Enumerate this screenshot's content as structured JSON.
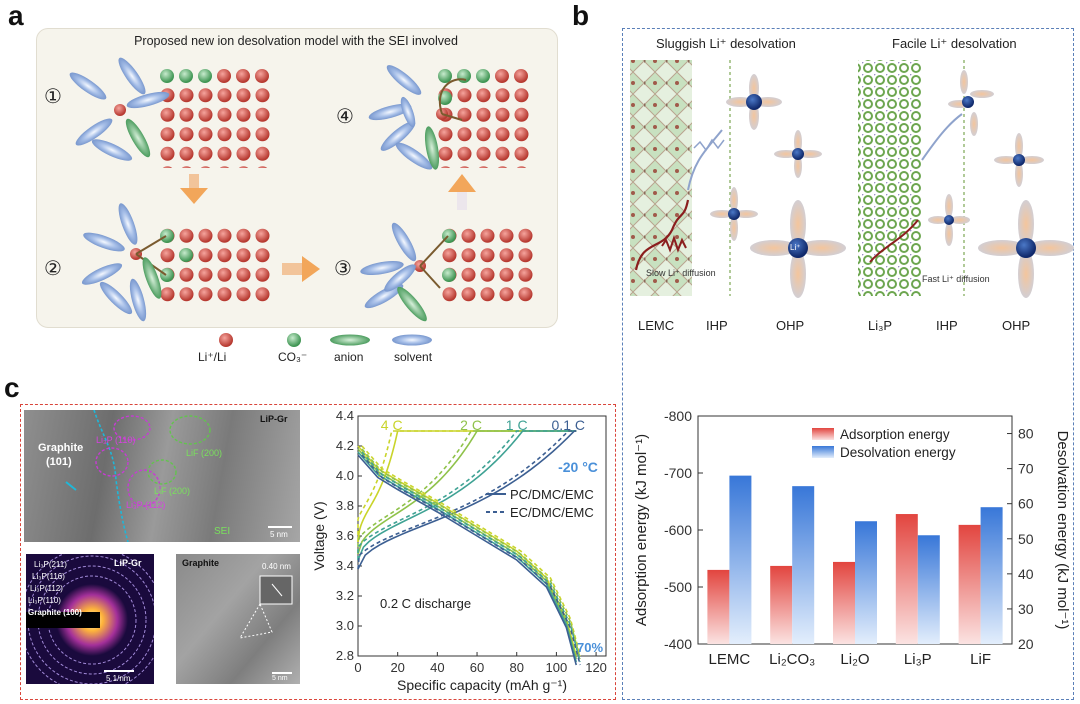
{
  "panels": {
    "a": "a",
    "b": "b",
    "c": "c"
  },
  "panel_a": {
    "title": "Proposed new ion desolvation model with the SEI involved",
    "steps": [
      "①",
      "②",
      "③",
      "④"
    ],
    "legend": {
      "li": "Li⁺/Li",
      "co3": "CO₃⁻",
      "anion": "anion",
      "solvent": "solvent"
    },
    "colors": {
      "li": "#c9463d",
      "co3": "#5aab6b",
      "solvent": "#7f9fd4",
      "anion": "#4f9e61",
      "arrow": "#f2a65a",
      "frame": "#f6f4ec"
    }
  },
  "panel_b": {
    "left_title": "Sluggish Li⁺ desolvation",
    "right_title": "Facile Li⁺ desolvation",
    "left_diffusion": "Slow Li⁺ diffusion",
    "right_diffusion": "Fast Li⁺ diffusion",
    "ion": "Li⁺",
    "bottom_labels": [
      "LEMC",
      "IHP",
      "OHP",
      "Li₃P",
      "IHP",
      "OHP"
    ]
  },
  "micrographs": {
    "top_tag": "LiP-Gr",
    "graphite": "Graphite",
    "graphite_plane": "(101)",
    "li3p_110": "Li₃P (110)",
    "li3p_112": "Li₃P (112)",
    "lif_200_a": "LiF (200)",
    "lif_200_b": "LiF (200)",
    "sei": "SEI",
    "scale_top": "5 nm",
    "saed_tag": "LiP-Gr",
    "saed_rings": [
      "Li₃P(211)",
      "Li₃P(116)",
      "Li₃P(112)",
      "Li₃P(110)",
      "Graphite (100)"
    ],
    "saed_scale": "5 1/nm",
    "graphite_tag": "Graphite",
    "lattice": "0.40 nm",
    "scale_graphite": "5 nm"
  },
  "chart_data": [
    {
      "type": "line",
      "title": "",
      "xlabel": "Specific capacity (mAh g⁻¹)",
      "ylabel": "Voltage (V)",
      "xlim": [
        0,
        125
      ],
      "ylim": [
        2.8,
        4.4
      ],
      "xticks": [
        0,
        20,
        40,
        60,
        80,
        100,
        120
      ],
      "yticks": [
        2.8,
        3.0,
        3.2,
        3.4,
        3.6,
        3.8,
        4.0,
        4.2,
        4.4
      ],
      "rate_labels": [
        "4 C",
        "2 C",
        "1 C",
        "0.1 C"
      ],
      "rate_colors": [
        "#c9d42a",
        "#8fc24a",
        "#3fa294",
        "#3c5f92"
      ],
      "temperature": "-20 °C",
      "discharge_label": "0.2 C discharge",
      "retention": "70%",
      "legend": [
        {
          "name": "PC/DMC/EMC",
          "style": "solid",
          "color": "#3c5f92"
        },
        {
          "name": "EC/DMC/EMC",
          "style": "dashed",
          "color": "#3c5f92"
        }
      ],
      "charge_series": [
        {
          "name": "4 C",
          "start": 3.56,
          "end_capacity": 20,
          "color": "#c9d42a"
        },
        {
          "name": "2 C",
          "start": 3.48,
          "end_capacity": 60,
          "color": "#8fc24a"
        },
        {
          "name": "1 C",
          "start": 3.44,
          "end_capacity": 83,
          "color": "#3fa294"
        },
        {
          "name": "0.1 C",
          "start": 3.38,
          "end_capacity": 109,
          "color": "#3c5f92"
        }
      ],
      "discharge_series": [
        {
          "name": "discharge",
          "points": [
            [
              0,
              4.2
            ],
            [
              10,
              4.05
            ],
            [
              20,
              3.97
            ],
            [
              40,
              3.82
            ],
            [
              60,
              3.66
            ],
            [
              80,
              3.5
            ],
            [
              95,
              3.32
            ],
            [
              105,
              3.05
            ],
            [
              110,
              2.8
            ]
          ]
        }
      ]
    },
    {
      "type": "bar",
      "categories": [
        "LEMC",
        "Li₂CO₃",
        "Li₂O",
        "Li₃P",
        "LiF"
      ],
      "series": [
        {
          "name": "Adsorption energy",
          "values": [
            -530,
            -537,
            -544,
            -628,
            -609
          ],
          "axis": "left",
          "color": "#d9534f"
        },
        {
          "name": "Desolvation energy",
          "values": [
            68,
            65,
            55,
            51,
            59
          ],
          "axis": "right",
          "color": "#3d7fd9"
        }
      ],
      "ylabel": "Adsorption energy (kJ mol⁻¹)",
      "y2label": "Desolvation energy (kJ mol⁻¹)",
      "ylim": [
        -400,
        -800
      ],
      "y2lim": [
        20,
        85
      ],
      "yticks": [
        -800,
        -700,
        -600,
        -500,
        -400
      ],
      "y2ticks": [
        20,
        30,
        40,
        50,
        60,
        70,
        80
      ]
    }
  ]
}
